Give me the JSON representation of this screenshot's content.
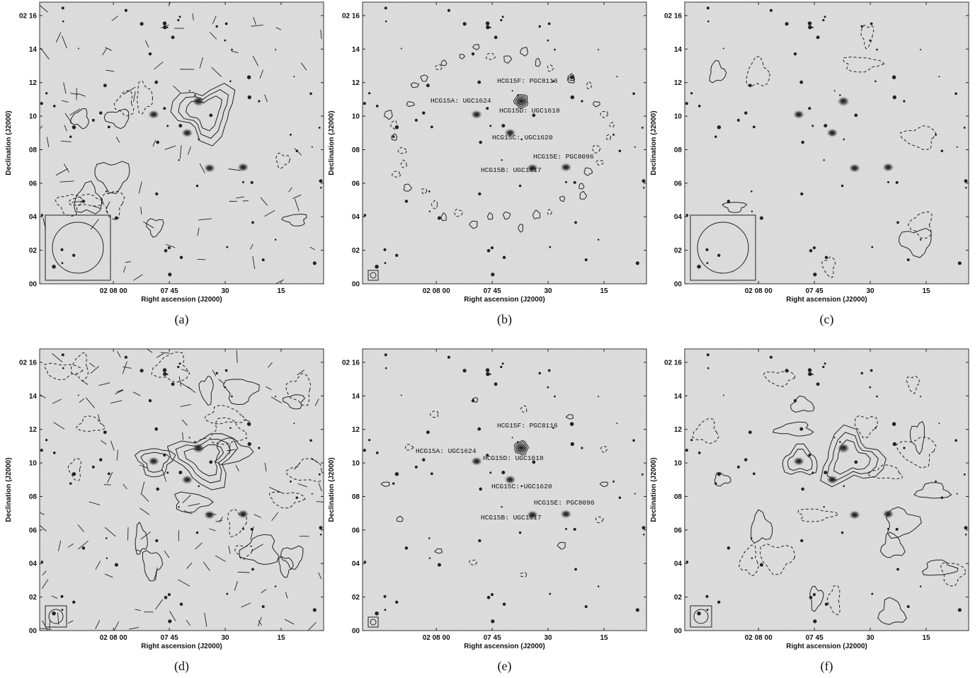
{
  "figure": {
    "xlabel": "Right ascension (J2000)",
    "ylabel": "Declination (J2000)",
    "dec_ticks": [
      "02 16",
      "14",
      "12",
      "10",
      "08",
      "06",
      "04",
      "02",
      "00"
    ],
    "ra_ticks": [
      "02 08 00",
      "07 45",
      "30",
      "15"
    ],
    "panels": [
      {
        "label": "(a)",
        "beam": "large-irregular",
        "vectors": true,
        "galaxy_labels": false
      },
      {
        "label": "(b)",
        "beam": "small",
        "vectors": false,
        "galaxy_labels": true
      },
      {
        "label": "(c)",
        "beam": "large-circle",
        "vectors": false,
        "galaxy_labels": false
      },
      {
        "label": "(d)",
        "beam": "medium",
        "vectors": true,
        "galaxy_labels": false
      },
      {
        "label": "(e)",
        "beam": "small",
        "vectors": false,
        "galaxy_labels": true
      },
      {
        "label": "(f)",
        "beam": "medium",
        "vectors": false,
        "galaxy_labels": false
      }
    ],
    "galaxies": [
      {
        "name": "HCG15A",
        "alias": "UGC1624",
        "ra_min": 7.82,
        "dec_min": 10.1
      },
      {
        "name": "HCG15B",
        "alias": "UGC1617",
        "ra_min": 7.57,
        "dec_min": 6.9
      },
      {
        "name": "HCG15C",
        "alias": "UGC1620",
        "ra_min": 7.67,
        "dec_min": 9.0
      },
      {
        "name": "HCG15D",
        "alias": "UGC1618",
        "ra_min": 7.62,
        "dec_min": 10.85
      },
      {
        "name": "HCG15E",
        "alias": "PGC8096",
        "ra_min": 7.42,
        "dec_min": 6.95
      },
      {
        "name": "HCG15F",
        "alias": "PGC8116",
        "ra_min": 7.62,
        "dec_min": 10.9
      }
    ],
    "panel_b_labels": [
      {
        "text": "HCG15F: PGC8116"
      },
      {
        "text": "HCG15A: UGC1624"
      },
      {
        "text": "HCG15D: UGC1618"
      },
      {
        "text": "HCG15C: UGC1620"
      },
      {
        "text": "HCG15E: PGC8096"
      },
      {
        "text": "HCG15B: UGC1617"
      }
    ],
    "panel_e_labels": [
      {
        "text": "HCG15F: PGC8116"
      },
      {
        "text": "HCG15A: UGC1624"
      },
      {
        "text": "HCG15D: UGC1618"
      },
      {
        "text": "HCG15C: UGC1620"
      },
      {
        "text": "HCG15E: PGC8096"
      },
      {
        "text": "HCG15B: UGC1617"
      }
    ]
  }
}
